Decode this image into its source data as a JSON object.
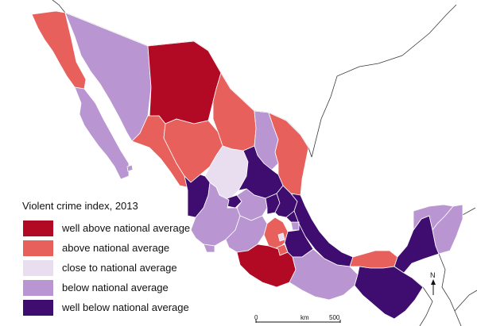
{
  "legend": {
    "title": "Violent crime index, 2013",
    "items": [
      {
        "label": "well above national average",
        "color": "#b20a24"
      },
      {
        "label": "above national average",
        "color": "#e8605c"
      },
      {
        "label": "close to national average",
        "color": "#e9ddf0"
      },
      {
        "label": "below national average",
        "color": "#b996d2"
      },
      {
        "label": "well below national average",
        "color": "#3f0c70"
      }
    ]
  },
  "scale_bar": {
    "start_label": "0",
    "unit_label": "km",
    "end_label": "500"
  },
  "north_label": "N",
  "states": [
    {
      "name": "baja-california",
      "category": "above"
    },
    {
      "name": "baja-california-sur",
      "category": "below"
    },
    {
      "name": "sonora",
      "category": "below"
    },
    {
      "name": "chihuahua",
      "category": "well-above"
    },
    {
      "name": "coahuila",
      "category": "above"
    },
    {
      "name": "nuevo-leon",
      "category": "below"
    },
    {
      "name": "tamaulipas",
      "category": "above"
    },
    {
      "name": "sinaloa",
      "category": "above"
    },
    {
      "name": "durango",
      "category": "above"
    },
    {
      "name": "zacatecas",
      "category": "close"
    },
    {
      "name": "san-luis-potosi",
      "category": "well-below"
    },
    {
      "name": "nayarit",
      "category": "well-below"
    },
    {
      "name": "aguascalientes",
      "category": "well-below"
    },
    {
      "name": "jalisco",
      "category": "below"
    },
    {
      "name": "guanajuato",
      "category": "below"
    },
    {
      "name": "queretaro",
      "category": "well-below"
    },
    {
      "name": "hidalgo",
      "category": "well-below"
    },
    {
      "name": "veracruz",
      "category": "well-below"
    },
    {
      "name": "michoacan",
      "category": "below"
    },
    {
      "name": "colima",
      "category": "below"
    },
    {
      "name": "mexico-state",
      "category": "above"
    },
    {
      "name": "mexico-city",
      "category": "close"
    },
    {
      "name": "morelos",
      "category": "above"
    },
    {
      "name": "tlaxcala",
      "category": "below"
    },
    {
      "name": "puebla",
      "category": "well-below"
    },
    {
      "name": "guerrero",
      "category": "well-above"
    },
    {
      "name": "oaxaca",
      "category": "below"
    },
    {
      "name": "tabasco",
      "category": "above"
    },
    {
      "name": "chiapas",
      "category": "well-below"
    },
    {
      "name": "campeche",
      "category": "well-below"
    },
    {
      "name": "yucatan",
      "category": "below"
    },
    {
      "name": "quintana-roo",
      "category": "below"
    }
  ]
}
